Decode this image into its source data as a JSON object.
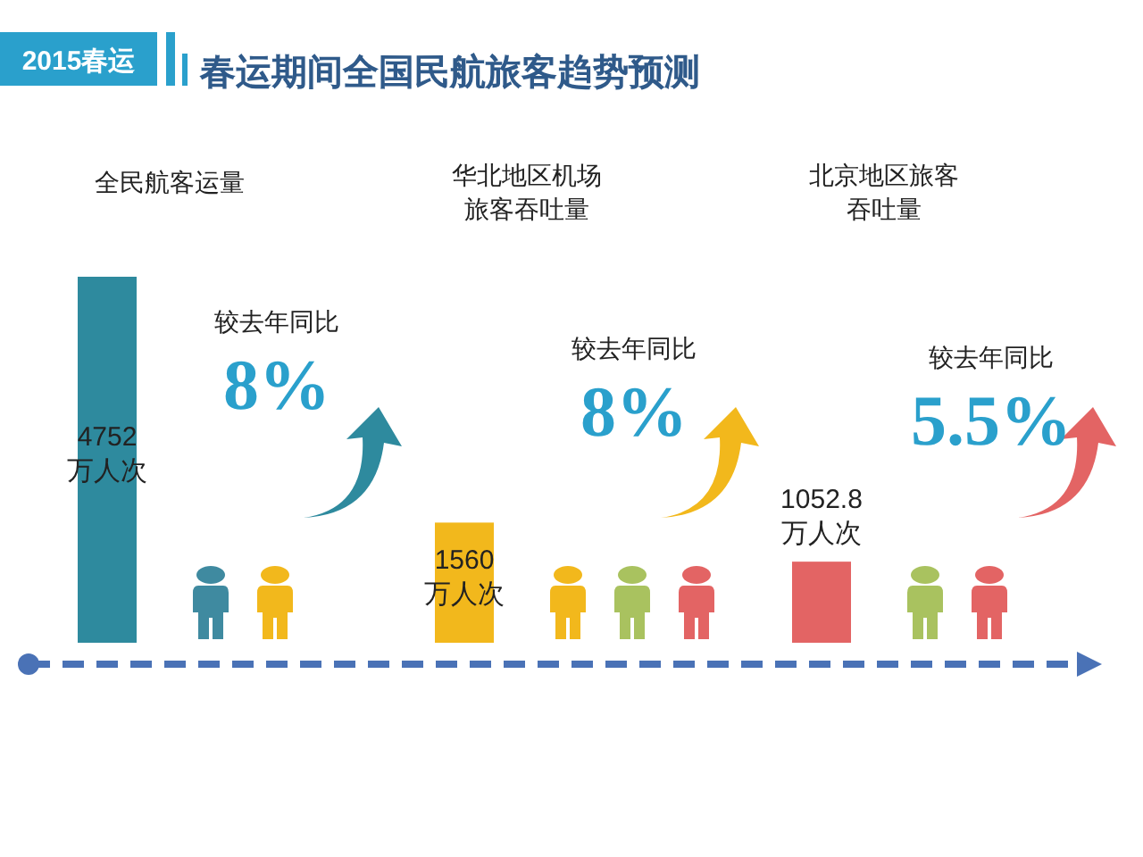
{
  "chart_data": {
    "type": "bar",
    "title": "春运期间全国民航旅客趋势预测",
    "subtitle": "2015春运",
    "categories": [
      "全民航客运量",
      "华北地区机场旅客吞吐量",
      "北京地区旅客吞吐量"
    ],
    "values": [
      4752,
      1560,
      1052.8
    ],
    "colors": [
      "#2e8a9e",
      "#f2b81c",
      "#e36464"
    ],
    "value_labels": [
      "4752\n万人次",
      "1560\n万人次",
      "1052.8\n万人次"
    ],
    "annotations": [
      "较去年同比",
      "8%",
      "较去年同比",
      "8%",
      "较去年同比",
      "5.5%"
    ]
  }
}
